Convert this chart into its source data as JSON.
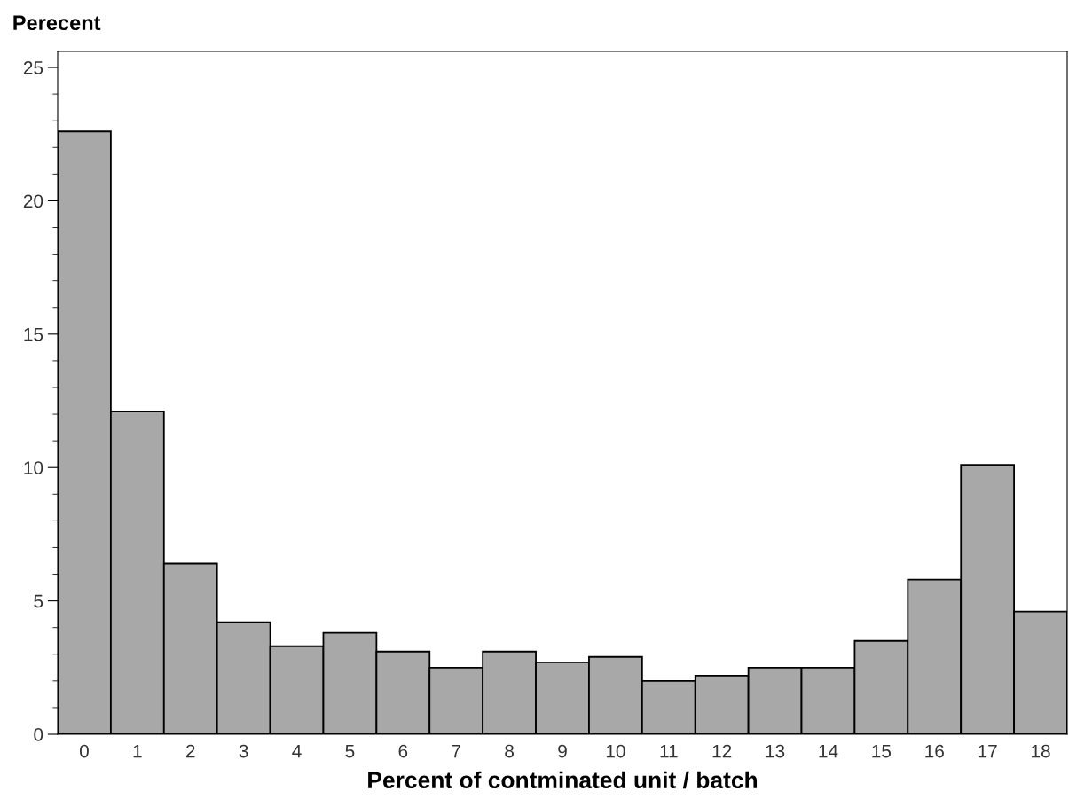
{
  "chart_data": {
    "type": "bar",
    "ylabel": "Perecent",
    "xlabel": "Percent of contminated unit / batch",
    "categories": [
      "0",
      "1",
      "2",
      "3",
      "4",
      "5",
      "6",
      "7",
      "8",
      "9",
      "10",
      "11",
      "12",
      "13",
      "14",
      "15",
      "16",
      "17",
      "18"
    ],
    "values": [
      22.6,
      12.1,
      6.4,
      4.2,
      3.3,
      3.8,
      3.1,
      2.5,
      3.1,
      2.7,
      2.9,
      2.0,
      2.2,
      2.5,
      2.5,
      3.5,
      5.8,
      10.1,
      4.6
    ],
    "color": "#a8a8a8",
    "ylim": [
      0,
      25.6
    ],
    "yticks": [
      0,
      5,
      10,
      15,
      20,
      25
    ],
    "grid": false
  }
}
